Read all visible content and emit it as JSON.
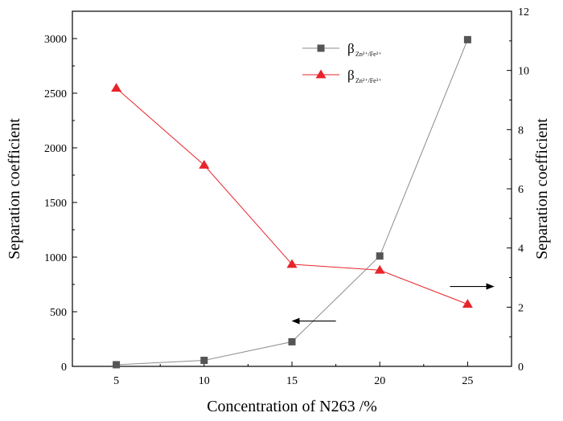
{
  "chart_data": {
    "type": "line",
    "title": "",
    "x": [
      5,
      10,
      15,
      20,
      25
    ],
    "xlabel": "Concentration of N263 /%",
    "xlim": [
      2.5,
      27.5
    ],
    "xticks": [
      5,
      10,
      15,
      20,
      25
    ],
    "ylabel_left": "Separation coefficient",
    "ylim_left": [
      0,
      3250
    ],
    "yticks_left": [
      0,
      500,
      1000,
      1500,
      2000,
      2500,
      3000
    ],
    "ylabel_right": "Separation coefficient",
    "ylim_right": [
      0,
      12
    ],
    "yticks_right": [
      0,
      2,
      4,
      6,
      8,
      10,
      12
    ],
    "grid": false,
    "legend_position": "top-right",
    "series": [
      {
        "name": "β Zn2+/Fe2+",
        "legend_main": "β",
        "legend_sub": "Zn²⁺/Fe²⁺",
        "axis": "left",
        "marker": "square",
        "color": "#555555",
        "line_color": "#8c8c8c",
        "values": [
          15,
          55,
          225,
          1010,
          2990
        ]
      },
      {
        "name": "β Zn2+/Fe3+",
        "legend_main": "β",
        "legend_sub": "Zn²⁺/Fe³⁺",
        "axis": "right",
        "marker": "triangle",
        "color": "#e8242b",
        "line_color": "#e8242b",
        "values": [
          9.4,
          6.8,
          3.45,
          3.25,
          2.1
        ]
      }
    ],
    "annotations": [
      {
        "type": "arrow",
        "direction": "left",
        "points_to_axis": "left",
        "at_x": 17.5,
        "at_y_left": 415
      },
      {
        "type": "arrow",
        "direction": "right",
        "points_to_axis": "right",
        "at_x": 24,
        "at_y_right": 2.7
      }
    ]
  }
}
